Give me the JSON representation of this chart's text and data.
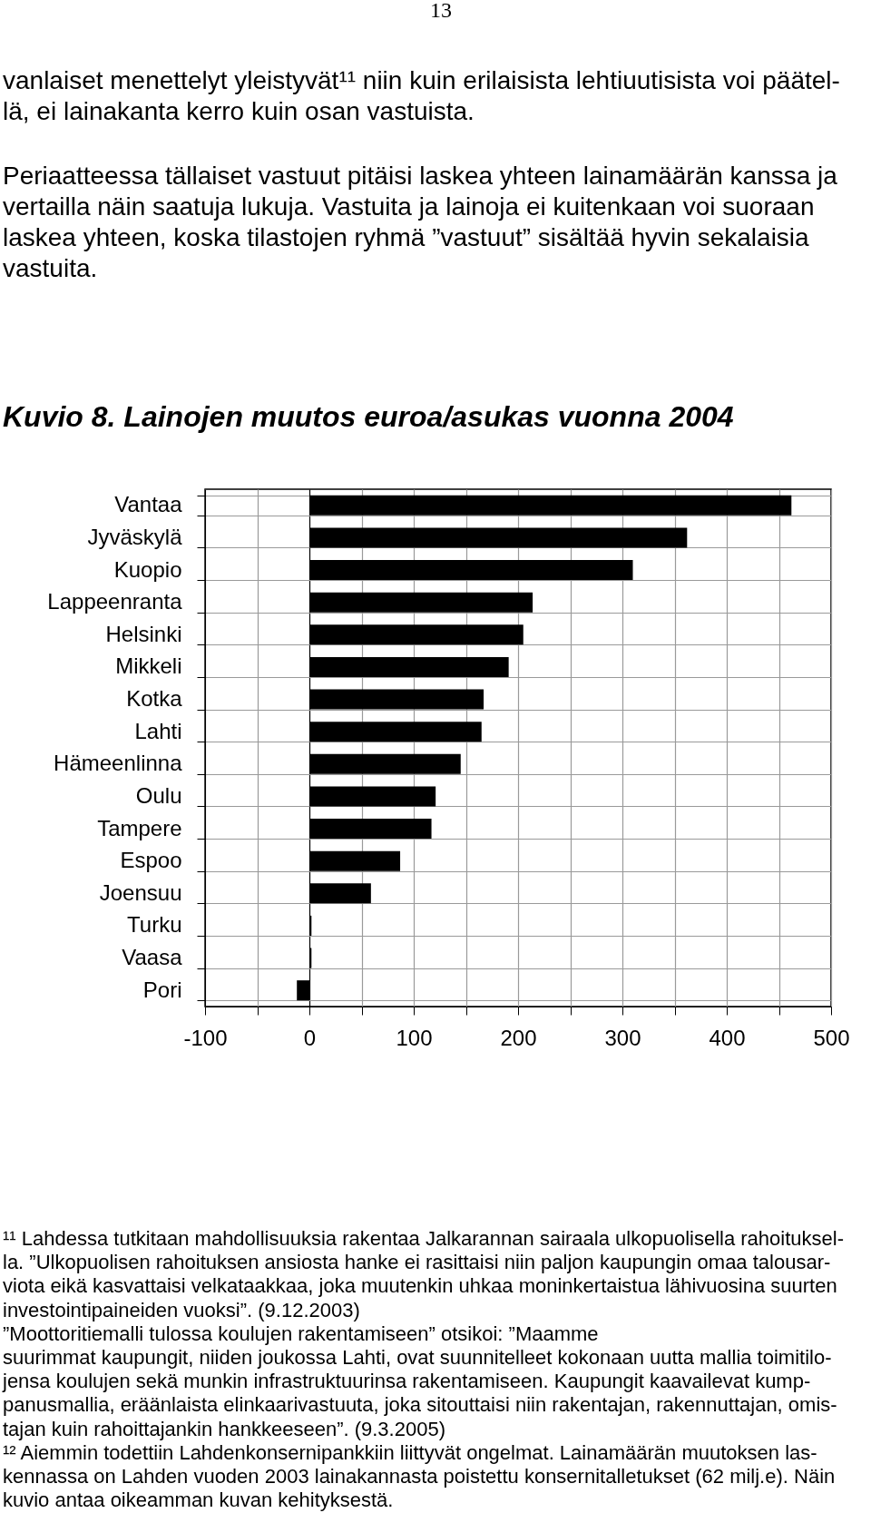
{
  "chart_data": {
    "type": "bar",
    "orientation": "horizontal",
    "title": "Kuvio 8. Lainojen muutos euroa/asukas vuonna 2004",
    "categories": [
      "Vantaa",
      "Jyväskylä",
      "Kuopio",
      "Lappeenranta",
      "Helsinki",
      "Mikkeli",
      "Kotka",
      "Lahti",
      "Hämeenlinna",
      "Oulu",
      "Tampere",
      "Espoo",
      "Joensuu",
      "Turku",
      "Vaasa",
      "Pori"
    ],
    "values": [
      462,
      362,
      310,
      214,
      205,
      191,
      167,
      165,
      145,
      121,
      117,
      87,
      59,
      2,
      2,
      -12
    ],
    "color": "#000000",
    "xlim": [
      -100,
      500
    ],
    "xticks": [
      -100,
      {
        "value": -50,
        "label": null
      },
      0,
      {
        "value": 50,
        "label": null
      },
      100,
      {
        "value": 150,
        "label": null
      },
      200,
      {
        "value": 250,
        "label": null
      },
      300,
      {
        "value": 350,
        "label": null
      },
      400,
      {
        "value": 450,
        "label": null
      },
      500
    ],
    "grid": true,
    "annotations": [
      "13",
      "vanlaiset menettelyt yleistyvät¹¹ niin kuin erilaisista lehtiuutisista voi päätel-",
      "lä, ei lainakanta kerro kuin osan vastuista.",
      "Periaatteessa tällaiset vastuut pitäisi laskea yhteen lainamäärän kanssa ja",
      "vertailla näin saatuja lukuja. Vastuita ja lainoja ei kuitenkaan voi suoraan",
      "laskea yhteen, koska tilastojen ryhmä ”vastuut” sisältää hyvin sekalaisia",
      "vastuita.",
      "¹¹ Lahdessa tutkitaan mahdollisuuksia rakentaa Jalkarannan sairaala ulkopuolisella rahoituksel-",
      "la. ”Ulkopuolisen rahoituksen ansiosta hanke ei rasittaisi niin paljon kaupungin omaa talousar-",
      "viota eikä kasvattaisi velkataakkaa, joka muutenkin uhkaa moninkertaistua lähivuosina suurten",
      "investointipaineiden vuoksi”. (9.12.2003)",
      "”Moottoritiemalli tulossa koulujen rakentamiseen” otsikoi: ”Maamme",
      "suurimmat kaupungit, niiden joukossa Lahti, ovat suunnitelleet kokonaan uutta mallia toimitilo-",
      "jensa koulujen sekä munkin infrastruktuurinsa rakentamiseen. Kaupungit kaavailevat kump-",
      "panusmallia, eräänlaista elinkaarivastuuta, joka sitouttaisi niin rakentajan, rakennuttajan, omis-",
      "tajan kuin rahoittajankin hankkeeseen”. (9.3.2005)",
      "¹² Aiemmin todettiin Lahdenkonsernipankkiin liittyvät ongelmat. Lainamäärän muutoksen las-",
      "kennassa on Lahden vuoden 2003 lainakannasta poistettu konsernitalletukset (62 milj.e). Näin",
      "kuvio antaa oikeamman kuvan kehityksestä."
    ]
  }
}
